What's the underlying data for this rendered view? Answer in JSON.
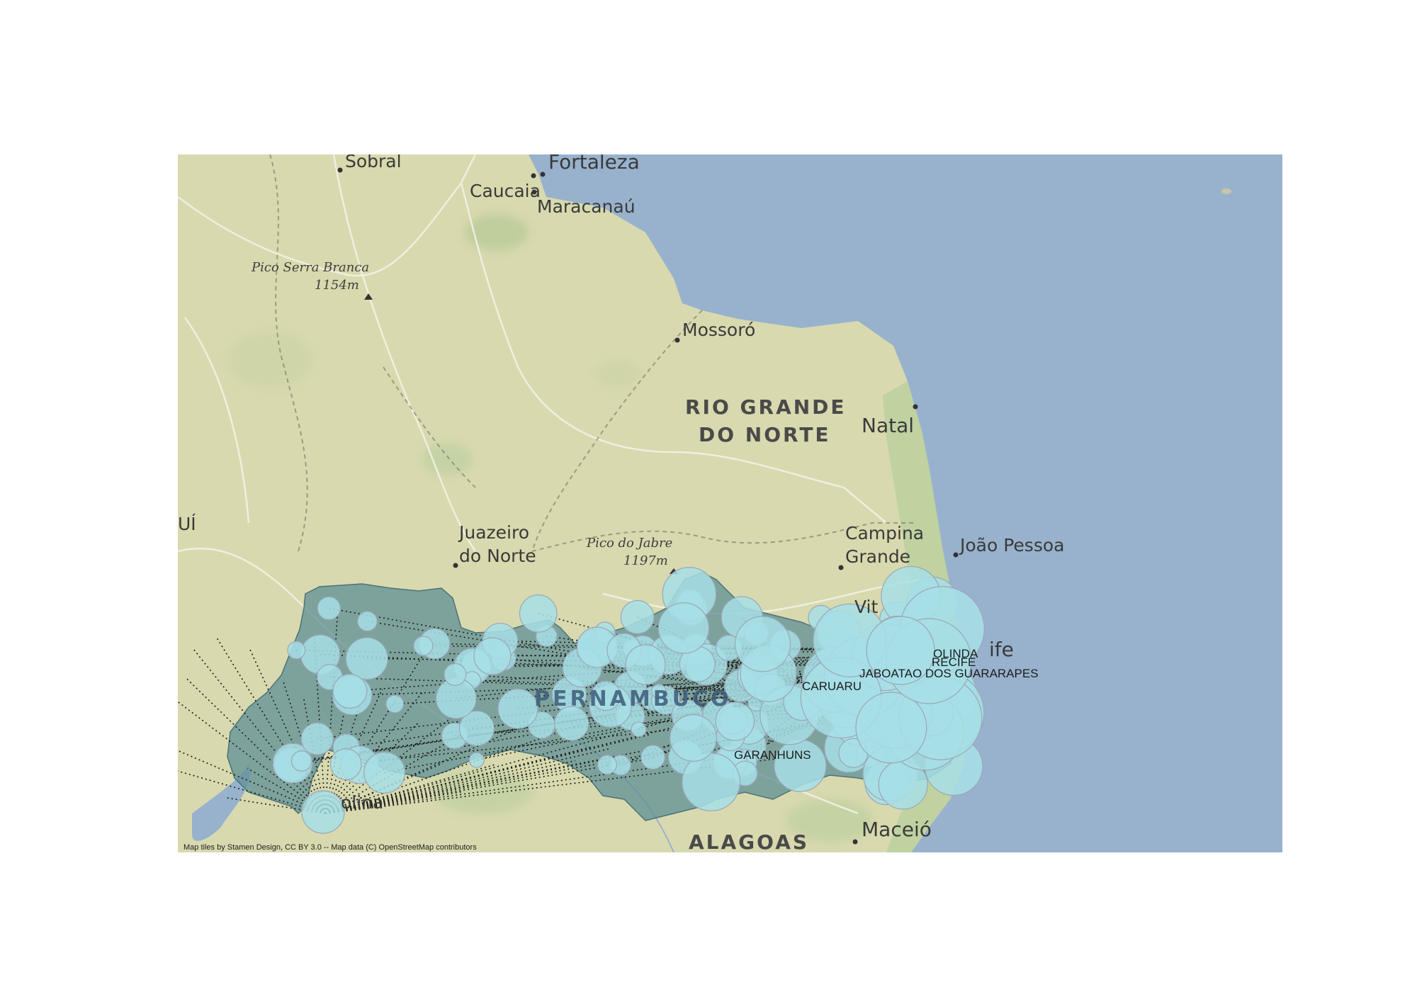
{
  "map": {
    "colors": {
      "ocean": "#98b2cd",
      "land": "#d8d9ae",
      "land_green": "#b9cf9c",
      "region": "#5f8f95",
      "bubble": "#a7dfe6",
      "bubble_stroke": "#9aa6b8",
      "flow_line": "#1a1a1a"
    },
    "place_labels": {
      "sobral": "Sobral",
      "fortaleza": "Fortaleza",
      "caucaia": "Caucaia",
      "maracanau": "Maracanaú",
      "mossoro": "Mossoró",
      "natal": "Natal",
      "juazeiro_1": "Juazeiro",
      "juazeiro_2": "do Norte",
      "campina_1": "Campina",
      "campina_2": "Grande",
      "joao_pessoa": "João Pessoa",
      "maceio": "Maceió",
      "piaui_fragment": "UÍ",
      "vit_fragment": "Vit",
      "recife_fragment": "ife",
      "petrolina_fragment": "olina"
    },
    "peak_labels": {
      "serra_branca_name": "Pico Serra Branca",
      "serra_branca_alt": "1154m",
      "jabre_name": "Pico do Jabre",
      "jabre_alt": "1197m"
    },
    "state_labels": {
      "rn_line1": "RIO GRANDE",
      "rn_line2": "DO NORTE",
      "pernambuco": "PERNAMBUCO",
      "alagoas": "ALAGOAS"
    },
    "municipality_labels": {
      "olinda": "OLINDA",
      "recife": "RECIFE",
      "jaboatao": "JABOATAO DOS GUARARAPES",
      "caruaru": "CARUARU",
      "garanhuns": "GARANHUNS"
    },
    "attribution": "Map tiles by Stamen Design, CC BY 3.0 -- Map data (C) OpenStreetMap contributors"
  }
}
